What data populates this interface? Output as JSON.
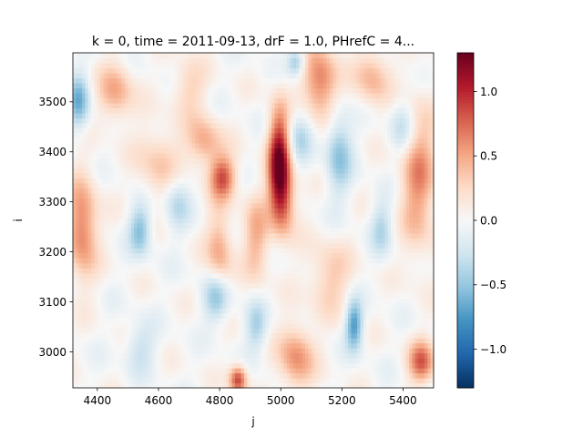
{
  "chart_data": {
    "type": "heatmap",
    "title": "k = 0, time = 2011-09-13, drF = 1.0, PHrefC = 4...",
    "xlabel": "j",
    "ylabel": "i",
    "xlim": [
      4320,
      5500
    ],
    "ylim": [
      2928,
      3598
    ],
    "xticks": [
      4400,
      4600,
      4800,
      5000,
      5200,
      5400
    ],
    "yticks": [
      3000,
      3100,
      3200,
      3300,
      3400,
      3500
    ],
    "colorbar": {
      "range": [
        -1.3,
        1.3
      ],
      "ticks": [
        -1.0,
        -0.5,
        0.0,
        0.5,
        1.0
      ],
      "tick_labels": [
        "−1.0",
        "−0.5",
        "0.0",
        "0.5",
        "1.0"
      ],
      "colormap": "RdBu_r"
    },
    "grid": false,
    "features": [
      {
        "j": 4995,
        "i": 3385,
        "value": 1.25,
        "sj": 25,
        "si": 70
      },
      {
        "j": 5010,
        "i": 3300,
        "value": 0.55,
        "sj": 30,
        "si": 50
      },
      {
        "j": 4350,
        "i": 3250,
        "value": 0.7,
        "sj": 35,
        "si": 70
      },
      {
        "j": 4810,
        "i": 3350,
        "value": 0.8,
        "sj": 30,
        "si": 30
      },
      {
        "j": 4750,
        "i": 3420,
        "value": 0.5,
        "sj": 40,
        "si": 35
      },
      {
        "j": 4800,
        "i": 3200,
        "value": 0.5,
        "sj": 30,
        "si": 60
      },
      {
        "j": 4920,
        "i": 3230,
        "value": 0.45,
        "sj": 30,
        "si": 60
      },
      {
        "j": 5130,
        "i": 3540,
        "value": 0.7,
        "sj": 40,
        "si": 50
      },
      {
        "j": 4460,
        "i": 3520,
        "value": 0.5,
        "sj": 40,
        "si": 40
      },
      {
        "j": 4600,
        "i": 3380,
        "value": 0.35,
        "sj": 50,
        "si": 50
      },
      {
        "j": 5450,
        "i": 3350,
        "value": 0.6,
        "sj": 40,
        "si": 100
      },
      {
        "j": 5460,
        "i": 2980,
        "value": 0.75,
        "sj": 30,
        "si": 30
      },
      {
        "j": 4860,
        "i": 2945,
        "value": 0.9,
        "sj": 20,
        "si": 20
      },
      {
        "j": 5050,
        "i": 2990,
        "value": 0.6,
        "sj": 40,
        "si": 45
      },
      {
        "j": 5160,
        "i": 3150,
        "value": 0.35,
        "sj": 50,
        "si": 50
      },
      {
        "j": 5300,
        "i": 3550,
        "value": 0.45,
        "sj": 40,
        "si": 40
      },
      {
        "j": 4700,
        "i": 3530,
        "value": 0.3,
        "sj": 40,
        "si": 40
      },
      {
        "j": 4340,
        "i": 3500,
        "value": -0.6,
        "sj": 25,
        "si": 40
      },
      {
        "j": 4540,
        "i": 3245,
        "value": -0.55,
        "sj": 25,
        "si": 35
      },
      {
        "j": 5240,
        "i": 3055,
        "value": -0.75,
        "sj": 20,
        "si": 35
      },
      {
        "j": 4790,
        "i": 3110,
        "value": -0.55,
        "sj": 30,
        "si": 35
      },
      {
        "j": 5190,
        "i": 3400,
        "value": -0.5,
        "sj": 30,
        "si": 60
      },
      {
        "j": 4660,
        "i": 3300,
        "value": -0.35,
        "sj": 30,
        "si": 40
      },
      {
        "j": 5060,
        "i": 3430,
        "value": -0.35,
        "sj": 30,
        "si": 40
      },
      {
        "j": 5400,
        "i": 3450,
        "value": -0.35,
        "sj": 30,
        "si": 40
      },
      {
        "j": 5050,
        "i": 3580,
        "value": -0.5,
        "sj": 20,
        "si": 20
      },
      {
        "j": 4920,
        "i": 3050,
        "value": -0.4,
        "sj": 25,
        "si": 35
      },
      {
        "j": 5330,
        "i": 3250,
        "value": -0.35,
        "sj": 25,
        "si": 40
      },
      {
        "j": 4540,
        "i": 3010,
        "value": -0.3,
        "sj": 35,
        "si": 35
      }
    ]
  }
}
